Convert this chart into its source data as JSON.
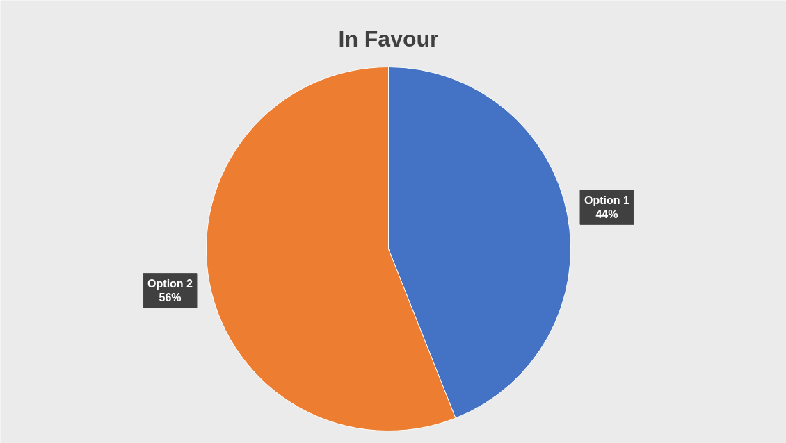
{
  "chart_data": {
    "type": "pie",
    "title": "In Favour",
    "categories": [
      "Option 1",
      "Option 2"
    ],
    "values": [
      44,
      56
    ],
    "colors": [
      "#4472c4",
      "#ed7d31"
    ],
    "value_labels": [
      "44%",
      "56%"
    ]
  }
}
